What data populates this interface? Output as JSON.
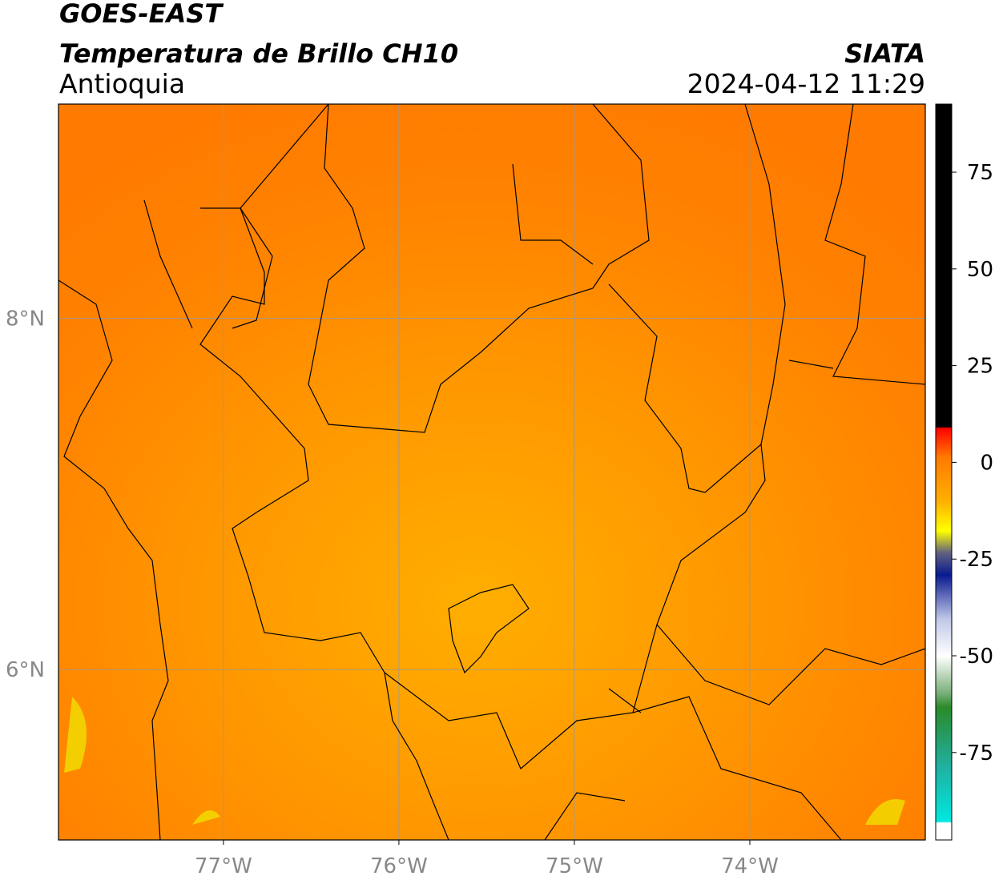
{
  "header": {
    "line1": "GOES-EAST",
    "line2": "Temperatura de Brillo CH10",
    "region": "Antioquia",
    "source": "SIATA",
    "datetime": "2024-04-12 11:29"
  },
  "map": {
    "xlim": [
      -77.94,
      -73.0
    ],
    "ylim": [
      5.03,
      9.22
    ],
    "xticks": [
      {
        "value": -77,
        "label": "77°W"
      },
      {
        "value": -76,
        "label": "76°W"
      },
      {
        "value": -75,
        "label": "75°W"
      },
      {
        "value": -74,
        "label": "74°W"
      }
    ],
    "yticks": [
      {
        "value": 8,
        "label": "8°N"
      },
      {
        "value": 6,
        "label": "6°N"
      }
    ]
  },
  "colorbar": {
    "lim": [
      -97.6,
      92.6
    ],
    "ticks": [
      75,
      50,
      25,
      0,
      -25,
      -50,
      -75
    ]
  }
}
